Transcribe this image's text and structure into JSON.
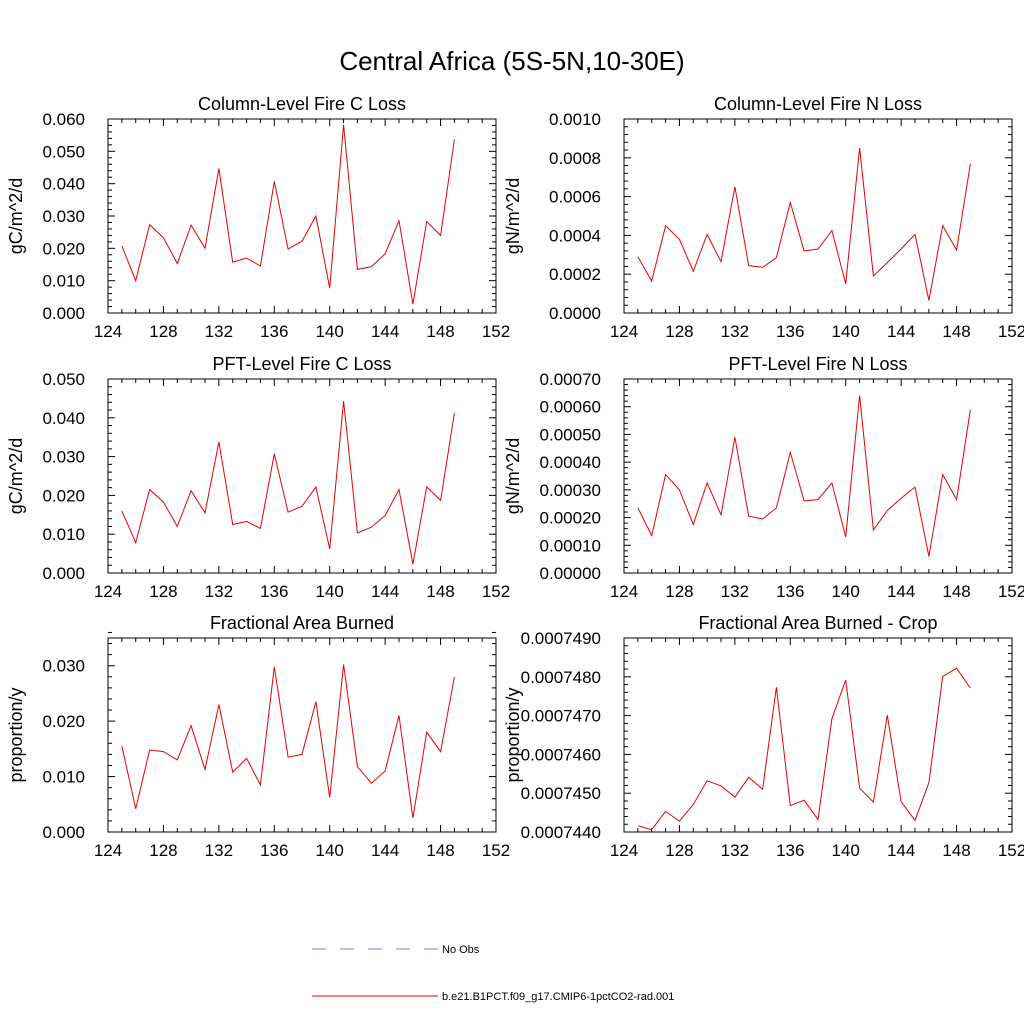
{
  "figure_title": "Central Africa (5S-5N,10-30E)",
  "legend": [
    {
      "label": "No Obs",
      "color": "#7f7fcf",
      "dash": true
    },
    {
      "label": "b.e21.B1PCT.f09_g17.CMIP6-1pctCO2-rad.001",
      "color": "#e60000",
      "dash": false
    }
  ],
  "chart_data": [
    {
      "type": "line",
      "title": "Column-Level Fire C Loss",
      "ylabel": "gC/m^2/d",
      "xlabel": "",
      "xlim": [
        124,
        152
      ],
      "ylim": [
        0,
        0.06
      ],
      "xticks": [
        "124",
        "128",
        "132",
        "136",
        "140",
        "144",
        "148",
        "152"
      ],
      "yticks": [
        "0.000",
        "0.010",
        "0.020",
        "0.030",
        "0.040",
        "0.050",
        "0.060"
      ],
      "x": [
        125,
        126,
        127,
        128,
        129,
        130,
        131,
        132,
        133,
        134,
        135,
        136,
        137,
        138,
        139,
        140,
        141,
        142,
        143,
        144,
        145,
        146,
        147,
        148,
        149
      ],
      "series": [
        {
          "name": "b.e21.B1PCT.f09_g17.CMIP6-1pctCO2-rad.001",
          "color": "#e60000",
          "values": [
            0.0207,
            0.01,
            0.0273,
            0.0233,
            0.0153,
            0.0272,
            0.02,
            0.0447,
            0.0157,
            0.017,
            0.0145,
            0.0407,
            0.0198,
            0.0222,
            0.03,
            0.0077,
            0.0582,
            0.0135,
            0.0143,
            0.0183,
            0.0285,
            0.0027,
            0.0283,
            0.024,
            0.0537
          ]
        }
      ]
    },
    {
      "type": "line",
      "title": "Column-Level Fire N Loss",
      "ylabel": "gN/m^2/d",
      "xlabel": "",
      "xlim": [
        124,
        152
      ],
      "ylim": [
        0,
        0.001
      ],
      "xticks": [
        "124",
        "128",
        "132",
        "136",
        "140",
        "144",
        "148",
        "152"
      ],
      "yticks": [
        "0.0000",
        "0.0002",
        "0.0004",
        "0.0006",
        "0.0008",
        "0.0010"
      ],
      "x": [
        125,
        126,
        127,
        128,
        129,
        130,
        131,
        132,
        133,
        134,
        135,
        136,
        137,
        138,
        139,
        140,
        141,
        142,
        143,
        144,
        145,
        146,
        147,
        148,
        149
      ],
      "series": [
        {
          "name": "b.e21.B1PCT.f09_g17.CMIP6-1pctCO2-rad.001",
          "color": "#e60000",
          "values": [
            0.00029,
            0.000165,
            0.00045,
            0.00038,
            0.000215,
            0.000405,
            0.000265,
            0.00065,
            0.000245,
            0.000235,
            0.000285,
            0.00057,
            0.00032,
            0.00033,
            0.000425,
            0.00015,
            0.00085,
            0.00019,
            0.00026,
            0.00033,
            0.000405,
            6.5e-05,
            0.00045,
            0.000325,
            0.00077
          ]
        }
      ]
    },
    {
      "type": "line",
      "title": "PFT-Level Fire C Loss",
      "ylabel": "gC/m^2/d",
      "xlabel": "",
      "xlim": [
        124,
        152
      ],
      "ylim": [
        0,
        0.05
      ],
      "xticks": [
        "124",
        "128",
        "132",
        "136",
        "140",
        "144",
        "148",
        "152"
      ],
      "yticks": [
        "0.000",
        "0.010",
        "0.020",
        "0.030",
        "0.040",
        "0.050"
      ],
      "x": [
        125,
        126,
        127,
        128,
        129,
        130,
        131,
        132,
        133,
        134,
        135,
        136,
        137,
        138,
        139,
        140,
        141,
        142,
        143,
        144,
        145,
        146,
        147,
        148,
        149
      ],
      "series": [
        {
          "name": "b.e21.B1PCT.f09_g17.CMIP6-1pctCO2-rad.001",
          "color": "#e60000",
          "values": [
            0.016,
            0.0078,
            0.0215,
            0.0183,
            0.012,
            0.0212,
            0.0155,
            0.0338,
            0.0125,
            0.0133,
            0.0115,
            0.0307,
            0.0157,
            0.0172,
            0.0222,
            0.0062,
            0.0443,
            0.0103,
            0.0118,
            0.0148,
            0.0215,
            0.0023,
            0.0222,
            0.0187,
            0.0412
          ]
        }
      ]
    },
    {
      "type": "line",
      "title": "PFT-Level Fire N Loss",
      "ylabel": "gN/m^2/d",
      "xlabel": "",
      "xlim": [
        124,
        152
      ],
      "ylim": [
        0,
        0.0007
      ],
      "xticks": [
        "124",
        "128",
        "132",
        "136",
        "140",
        "144",
        "148",
        "152"
      ],
      "yticks": [
        "0.00000",
        "0.00010",
        "0.00020",
        "0.00030",
        "0.00040",
        "0.00050",
        "0.00060",
        "0.00070"
      ],
      "x": [
        125,
        126,
        127,
        128,
        129,
        130,
        131,
        132,
        133,
        134,
        135,
        136,
        137,
        138,
        139,
        140,
        141,
        142,
        143,
        144,
        145,
        146,
        147,
        148,
        149
      ],
      "series": [
        {
          "name": "b.e21.B1PCT.f09_g17.CMIP6-1pctCO2-rad.001",
          "color": "#e60000",
          "values": [
            0.000235,
            0.000135,
            0.000355,
            0.0003,
            0.000175,
            0.000325,
            0.00021,
            0.00049,
            0.000205,
            0.000195,
            0.000235,
            0.000435,
            0.00026,
            0.000265,
            0.000325,
            0.00013,
            0.00064,
            0.000155,
            0.000225,
            0.00027,
            0.00031,
            6e-05,
            0.000355,
            0.000265,
            0.00059
          ]
        }
      ]
    },
    {
      "type": "line",
      "title": "Fractional Area Burned",
      "ylabel": "proportion/y",
      "xlabel": "",
      "xlim": [
        124,
        152
      ],
      "ylim": [
        0,
        0.035
      ],
      "xticks": [
        "124",
        "128",
        "132",
        "136",
        "140",
        "144",
        "148",
        "152"
      ],
      "yticks": [
        "0.000",
        "0.010",
        "0.020",
        "0.030"
      ],
      "x": [
        125,
        126,
        127,
        128,
        129,
        130,
        131,
        132,
        133,
        134,
        135,
        136,
        137,
        138,
        139,
        140,
        141,
        142,
        143,
        144,
        145,
        146,
        147,
        148,
        149
      ],
      "series": [
        {
          "name": "b.e21.B1PCT.f09_g17.CMIP6-1pctCO2-rad.001",
          "color": "#e60000",
          "values": [
            0.0155,
            0.0042,
            0.0148,
            0.0145,
            0.013,
            0.0192,
            0.0113,
            0.023,
            0.0108,
            0.0133,
            0.0085,
            0.0298,
            0.0135,
            0.014,
            0.0235,
            0.0062,
            0.0302,
            0.0118,
            0.0088,
            0.011,
            0.021,
            0.0025,
            0.018,
            0.0145,
            0.028
          ]
        }
      ]
    },
    {
      "type": "line",
      "title": "Fractional Area Burned - Crop",
      "ylabel": "proportion/y",
      "xlabel": "",
      "xlim": [
        124,
        152
      ],
      "ylim": [
        0.000744,
        0.000749
      ],
      "xticks": [
        "124",
        "128",
        "132",
        "136",
        "140",
        "144",
        "148",
        "152"
      ],
      "yticks": [
        "0.0007440",
        "0.0007450",
        "0.0007460",
        "0.0007470",
        "0.0007480",
        "0.0007490"
      ],
      "x": [
        125,
        126,
        127,
        128,
        129,
        130,
        131,
        132,
        133,
        134,
        135,
        136,
        137,
        138,
        139,
        140,
        141,
        142,
        143,
        144,
        145,
        146,
        147,
        148,
        149
      ],
      "series": [
        {
          "name": "b.e21.B1PCT.f09_g17.CMIP6-1pctCO2-rad.001",
          "color": "#e60000",
          "values": [
            0.00074416,
            0.00074406,
            0.00074453,
            0.00074428,
            0.00074471,
            0.00074532,
            0.00074519,
            0.0007449,
            0.00074541,
            0.0007451,
            0.00074773,
            0.00074468,
            0.00074482,
            0.00074432,
            0.00074692,
            0.00074792,
            0.00074513,
            0.00074477,
            0.00074701,
            0.00074478,
            0.0007443,
            0.00074527,
            0.00074801,
            0.00074822,
            0.00074771
          ]
        }
      ]
    }
  ]
}
